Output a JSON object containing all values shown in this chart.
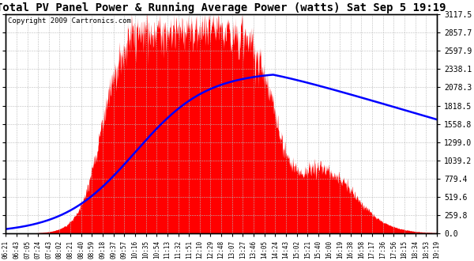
{
  "title": "Total PV Panel Power & Running Average Power (watts) Sat Sep 5 19:19",
  "copyright": "Copyright 2009 Cartronics.com",
  "yticks": [
    0.0,
    259.8,
    519.6,
    779.4,
    1039.2,
    1299.0,
    1558.8,
    1818.5,
    2078.3,
    2338.1,
    2597.9,
    2857.7,
    3117.5
  ],
  "ymax": 3117.5,
  "ymin": 0.0,
  "xtick_labels": [
    "06:21",
    "06:43",
    "07:05",
    "07:24",
    "07:43",
    "08:02",
    "08:21",
    "08:40",
    "08:59",
    "09:18",
    "09:37",
    "09:57",
    "10:16",
    "10:35",
    "10:54",
    "11:13",
    "11:32",
    "11:51",
    "12:10",
    "12:29",
    "12:48",
    "13:07",
    "13:27",
    "13:46",
    "14:05",
    "14:24",
    "14:43",
    "15:02",
    "15:21",
    "15:40",
    "16:00",
    "16:19",
    "16:38",
    "16:58",
    "17:17",
    "17:36",
    "17:56",
    "18:15",
    "18:34",
    "18:53",
    "19:19"
  ],
  "background_color": "#ffffff",
  "fill_color": "#ff0000",
  "line_color": "#0000ff",
  "grid_color": "#bbbbbb",
  "title_fontsize": 10,
  "copyright_fontsize": 6.5
}
